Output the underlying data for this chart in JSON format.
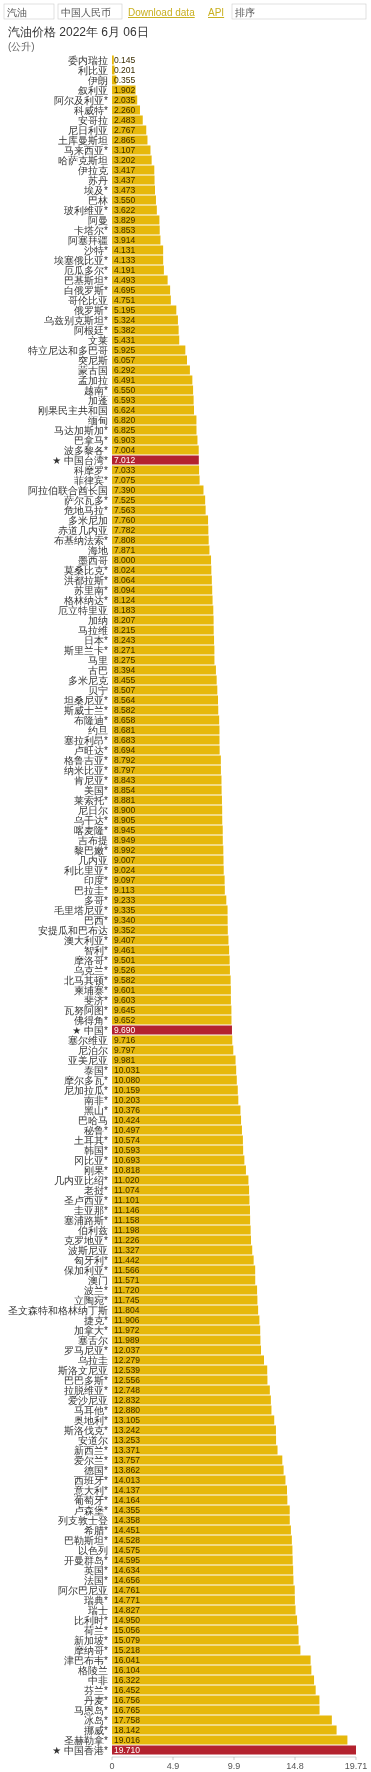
{
  "chart_data": {
    "type": "bar",
    "orientation": "horizontal",
    "title": "汽油价格 2022年 6月 06日",
    "subtitle": "(公升)",
    "annotations": [
      "汽油",
      "中国人民币",
      "Download data",
      "API",
      "排序"
    ],
    "categories": [
      "委内瑞拉",
      "利比亚",
      "伊朗",
      "叙利亚",
      "阿尔及利亚*",
      "科威特*",
      "安哥拉",
      "尼日利亚",
      "土库曼斯坦",
      "马来西亚*",
      "哈萨克斯坦",
      "伊拉克",
      "苏丹",
      "埃及*",
      "巴林",
      "玻利维亚*",
      "阿曼",
      "卡塔尔*",
      "阿塞拜疆",
      "沙特*",
      "埃塞俄比亚*",
      "厄瓜多尔*",
      "巴基斯坦*",
      "白俄罗斯*",
      "哥伦比亚",
      "俄罗斯*",
      "乌兹别克斯坦*",
      "阿根廷*",
      "文莱",
      "特立尼达和多巴哥",
      "突尼斯",
      "蒙古国",
      "孟加拉",
      "越南*",
      "加蓬",
      "刚果民主共和国",
      "缅甸",
      "马达加斯加*",
      "巴拿马*",
      "波多黎各*",
      "★ 中国台湾*",
      "科摩罗*",
      "菲律宾*",
      "阿拉伯联合酋长国",
      "萨尔瓦多*",
      "危地马拉*",
      "多米尼加",
      "赤道几内亚",
      "布基纳法索*",
      "海地",
      "墨西哥",
      "莫桑比克*",
      "洪都拉斯*",
      "苏里南*",
      "格林纳达*",
      "厄立特里亚",
      "加纳",
      "马拉维",
      "日本*",
      "斯里兰卡*",
      "马里",
      "古巴",
      "多米尼克",
      "贝宁",
      "坦桑尼亚*",
      "斯威士兰*",
      "布隆迪*",
      "约旦",
      "塞拉利昂*",
      "卢旺达*",
      "格鲁吉亚*",
      "纳米比亚*",
      "肯尼亚*",
      "美国*",
      "莱索托*",
      "尼日尔",
      "乌干达*",
      "喀麦隆*",
      "吉布提",
      "黎巴嫩*",
      "几内亚",
      "利比里亚*",
      "印度*",
      "巴拉圭*",
      "多哥*",
      "毛里塔尼亚*",
      "巴西*",
      "安提瓜和巴布达",
      "澳大利亚*",
      "智利*",
      "摩洛哥*",
      "乌克兰*",
      "北马其顿*",
      "柬埔寨*",
      "斐济*",
      "瓦努阿图*",
      "佛得角*",
      "★ 中国*",
      "塞尔维亚",
      "尼泊尔",
      "亚美尼亚",
      "泰国*",
      "摩尔多瓦*",
      "尼加拉瓜*",
      "南非*",
      "黑山*",
      "巴哈马",
      "秘鲁*",
      "土耳其*",
      "韩国*",
      "冈比亚*",
      "刚果*",
      "几内亚比绍*",
      "老挝*",
      "圣卢西亚*",
      "圭亚那*",
      "塞浦路斯*",
      "伯利兹",
      "克罗地亚*",
      "波斯尼亚",
      "匈牙利*",
      "保加利亚*",
      "澳门",
      "波兰*",
      "立陶宛*",
      "圣文森特和格林纳丁斯",
      "捷克*",
      "加拿大*",
      "塞舌尔",
      "罗马尼亚*",
      "乌拉圭",
      "斯洛文尼亚",
      "巴巴多斯*",
      "拉脱维亚*",
      "爱沙尼亚",
      "马耳他*",
      "奥地利*",
      "斯洛伐克*",
      "安道尔",
      "新西兰*",
      "爱尔兰*",
      "德国*",
      "西班牙*",
      "意大利*",
      "葡萄牙*",
      "卢森堡*",
      "列支敦士登",
      "希腊*",
      "巴勒斯坦*",
      "以色列",
      "开曼群岛*",
      "英国*",
      "法国*",
      "阿尔巴尼亚",
      "瑞典*",
      "瑞士",
      "比利时*",
      "荷兰*",
      "新加坡*",
      "摩纳哥*",
      "津巴布韦*",
      "格陵兰",
      "中非",
      "芬兰*",
      "丹麦*",
      "马恩岛*",
      "冰岛*",
      "挪威*",
      "圣赫勒拿*",
      "★ 中国香港*"
    ],
    "values": [
      0.145,
      0.201,
      0.355,
      1.902,
      2.035,
      2.26,
      2.483,
      2.767,
      2.865,
      3.107,
      3.202,
      3.417,
      3.437,
      3.473,
      3.55,
      3.622,
      3.829,
      3.853,
      3.914,
      4.131,
      4.133,
      4.191,
      4.493,
      4.695,
      4.751,
      5.195,
      5.324,
      5.382,
      5.431,
      5.925,
      6.057,
      6.292,
      6.491,
      6.55,
      6.593,
      6.624,
      6.82,
      6.825,
      6.903,
      7.004,
      7.012,
      7.033,
      7.075,
      7.39,
      7.525,
      7.563,
      7.76,
      7.782,
      7.808,
      7.871,
      8.0,
      8.024,
      8.064,
      8.094,
      8.124,
      8.183,
      8.207,
      8.215,
      8.243,
      8.271,
      8.275,
      8.394,
      8.455,
      8.507,
      8.564,
      8.582,
      8.658,
      8.681,
      8.683,
      8.694,
      8.792,
      8.797,
      8.843,
      8.854,
      8.881,
      8.9,
      8.905,
      8.945,
      8.949,
      8.992,
      9.007,
      9.024,
      9.097,
      9.113,
      9.233,
      9.335,
      9.34,
      9.352,
      9.407,
      9.461,
      9.501,
      9.526,
      9.582,
      9.601,
      9.603,
      9.645,
      9.652,
      9.69,
      9.716,
      9.797,
      9.981,
      10.031,
      10.08,
      10.159,
      10.203,
      10.376,
      10.424,
      10.497,
      10.574,
      10.593,
      10.693,
      10.818,
      11.02,
      11.074,
      11.101,
      11.146,
      11.158,
      11.198,
      11.226,
      11.327,
      11.442,
      11.566,
      11.571,
      11.72,
      11.745,
      11.804,
      11.906,
      11.972,
      11.989,
      12.037,
      12.279,
      12.539,
      12.556,
      12.748,
      12.832,
      12.88,
      13.105,
      13.242,
      13.253,
      13.371,
      13.757,
      13.862,
      14.013,
      14.137,
      14.164,
      14.355,
      14.358,
      14.451,
      14.528,
      14.575,
      14.595,
      14.634,
      14.656,
      14.761,
      14.771,
      14.827,
      14.95,
      15.056,
      15.079,
      15.218,
      16.041,
      16.104,
      16.322,
      16.452,
      16.756,
      16.765,
      17.758,
      18.142,
      19.016,
      19.71
    ],
    "value_labels": [
      "0.145",
      "0.201",
      "0.355",
      "1.902",
      "2.035",
      "2.260",
      "2.483",
      "2.767",
      "2.865",
      "3.107",
      "3.202",
      "3.417",
      "3.437",
      "3.473",
      "3.550",
      "3.622",
      "3.829",
      "3.853",
      "3.914",
      "4.131",
      "4.133",
      "4.191",
      "4.493",
      "4.695",
      "4.751",
      "5.195",
      "5.324",
      "5.382",
      "5.431",
      "5.925",
      "6.057",
      "6.292",
      "6.491",
      "6.550",
      "6.593",
      "6.624",
      "6.820",
      "6.825",
      "6.903",
      "7.004",
      "7.012",
      "7.033",
      "7.075",
      "7.390",
      "7.525",
      "7.563",
      "7.760",
      "7.782",
      "7.808",
      "7.871",
      "8.000",
      "8.024",
      "8.064",
      "8.094",
      "8.124",
      "8.183",
      "8.207",
      "8.215",
      "8.243",
      "8.271",
      "8.275",
      "8.394",
      "8.455",
      "8.507",
      "8.564",
      "8.582",
      "8.658",
      "8.681",
      "8.683",
      "8.694",
      "8.792",
      "8.797",
      "8.843",
      "8.854",
      "8.881",
      "8.900",
      "8.905",
      "8.945",
      "8.949",
      "8.992",
      "9.007",
      "9.024",
      "9.097",
      "9.113",
      "9.233",
      "9.335",
      "9.340",
      "9.352",
      "9.407",
      "9.461",
      "9.501",
      "9.526",
      "9.582",
      "9.601",
      "9.603",
      "9.645",
      "9.652",
      "9.690",
      "9.716",
      "9.797",
      "9.981",
      "10.031",
      "10.080",
      "10.159",
      "10.203",
      "10.376",
      "10.424",
      "10.497",
      "10.574",
      "10.593",
      "10.693",
      "10.818",
      "11.020",
      "11.074",
      "11.101",
      "11.146",
      "11.158",
      "11.198",
      "11.226",
      "11.327",
      "11.442",
      "11.566",
      "11.571",
      "11.720",
      "11.745",
      "11.804",
      "11.906",
      "11.972",
      "11.989",
      "12.037",
      "12.279",
      "12.539",
      "12.556",
      "12.748",
      "12.832",
      "12.880",
      "13.105",
      "13.242",
      "13.253",
      "13.371",
      "13.757",
      "13.862",
      "14.013",
      "14.137",
      "14.164",
      "14.355",
      "14.358",
      "14.451",
      "14.528",
      "14.575",
      "14.595",
      "14.634",
      "14.656",
      "14.761",
      "14.771",
      "14.827",
      "14.950",
      "15.056",
      "15.079",
      "15.218",
      "16.041",
      "16.104",
      "16.322",
      "16.452",
      "16.756",
      "16.765",
      "17.758",
      "18.142",
      "19.016",
      "19.710"
    ],
    "colors": [
      "#e6b80c",
      "#e6b80c",
      "#e6b80c",
      "#e6b80c",
      "#e6b80c",
      "#e6b80c",
      "#e6b80c",
      "#e6b80c",
      "#e6b80c",
      "#e6b80c",
      "#e6b80c",
      "#e6b80c",
      "#e6b80c",
      "#e6b80c",
      "#e6b80c",
      "#e6b80c",
      "#e6b80c",
      "#e6b80c",
      "#e6b80c",
      "#e6b80c",
      "#e6b80c",
      "#e6b80c",
      "#e6b80c",
      "#e6b80c",
      "#e6b80c",
      "#e6b80c",
      "#e6b80c",
      "#e6b80c",
      "#e6b80c",
      "#e6b80c",
      "#e6b80c",
      "#e6b80c",
      "#e6b80c",
      "#e6b80c",
      "#e6b80c",
      "#e6b80c",
      "#e6b80c",
      "#e6b80c",
      "#e6b80c",
      "#e6b80c",
      "#b3222e",
      "#e6b80c",
      "#e6b80c",
      "#e6b80c",
      "#e6b80c",
      "#e6b80c",
      "#e6b80c",
      "#e6b80c",
      "#e6b80c",
      "#e6b80c",
      "#e6b80c",
      "#e6b80c",
      "#e6b80c",
      "#e6b80c",
      "#e6b80c",
      "#e6b80c",
      "#e6b80c",
      "#e6b80c",
      "#e6b80c",
      "#e6b80c",
      "#e6b80c",
      "#e6b80c",
      "#e6b80c",
      "#e6b80c",
      "#e6b80c",
      "#e6b80c",
      "#e6b80c",
      "#e6b80c",
      "#e6b80c",
      "#e6b80c",
      "#e6b80c",
      "#e6b80c",
      "#e6b80c",
      "#e6b80c",
      "#e6b80c",
      "#e6b80c",
      "#e6b80c",
      "#e6b80c",
      "#e6b80c",
      "#e6b80c",
      "#e6b80c",
      "#e6b80c",
      "#e6b80c",
      "#e6b80c",
      "#e6b80c",
      "#e6b80c",
      "#e6b80c",
      "#e6b80c",
      "#e6b80c",
      "#e6b80c",
      "#e6b80c",
      "#e6b80c",
      "#e6b80c",
      "#e6b80c",
      "#e6b80c",
      "#e6b80c",
      "#e6b80c",
      "#b3222e",
      "#e6b80c",
      "#e6b80c",
      "#e6b80c",
      "#e6b80c",
      "#e6b80c",
      "#e6b80c",
      "#e6b80c",
      "#e6b80c",
      "#e6b80c",
      "#e6b80c",
      "#e6b80c",
      "#e6b80c",
      "#e6b80c",
      "#e6b80c",
      "#e6b80c",
      "#e6b80c",
      "#e6b80c",
      "#e6b80c",
      "#e6b80c",
      "#e6b80c",
      "#e6b80c",
      "#e6b80c",
      "#e6b80c",
      "#e6b80c",
      "#e6b80c",
      "#e6b80c",
      "#e6b80c",
      "#e6b80c",
      "#e6b80c",
      "#e6b80c",
      "#e6b80c",
      "#e6b80c",
      "#e6b80c",
      "#e6b80c",
      "#e6b80c",
      "#e6b80c",
      "#e6b80c",
      "#e6b80c",
      "#e6b80c",
      "#e6b80c",
      "#e6b80c",
      "#e6b80c",
      "#e6b80c",
      "#e6b80c",
      "#e6b80c",
      "#e6b80c",
      "#e6b80c",
      "#e6b80c",
      "#e6b80c",
      "#e6b80c",
      "#e6b80c",
      "#e6b80c",
      "#e6b80c",
      "#e6b80c",
      "#e6b80c",
      "#e6b80c",
      "#e6b80c",
      "#e6b80c",
      "#e6b80c",
      "#e6b80c",
      "#e6b80c",
      "#e6b80c",
      "#e6b80c",
      "#e6b80c",
      "#e6b80c",
      "#e6b80c",
      "#e6b80c",
      "#e6b80c",
      "#e6b80c",
      "#e6b80c",
      "#e6b80c",
      "#b3222e"
    ],
    "xlim": [
      0,
      19.71
    ],
    "xticks": [
      0,
      {
        "value": 4.9275,
        "label": "4.9"
      },
      {
        "value": 9.855,
        "label": "9.9"
      },
      {
        "value": 14.7825,
        "label": "14.8"
      },
      19.71
    ]
  }
}
